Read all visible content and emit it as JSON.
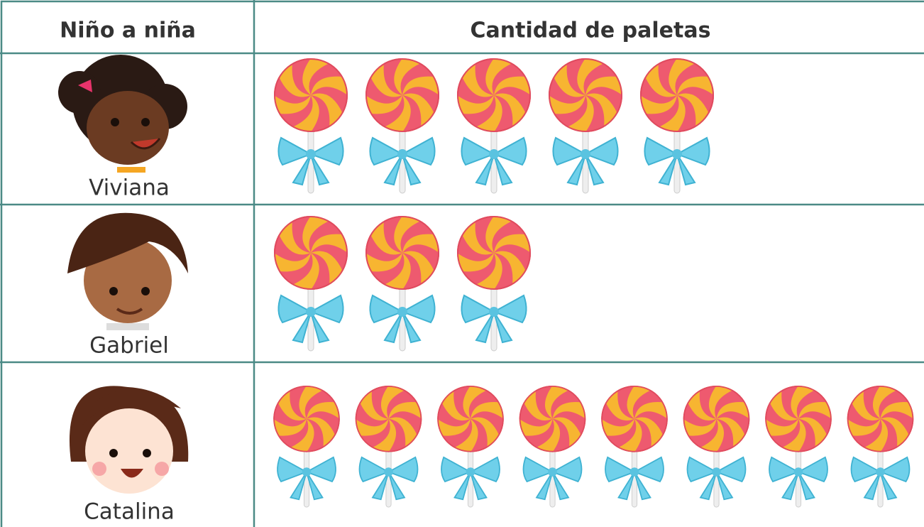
{
  "header": {
    "col1": "Niño a niña",
    "col2": "Cantidad de paletas"
  },
  "rows": [
    {
      "name": "Viviana",
      "count": 5
    },
    {
      "name": "Gabriel",
      "count": 3
    },
    {
      "name": "Catalina",
      "count": 8
    }
  ]
}
